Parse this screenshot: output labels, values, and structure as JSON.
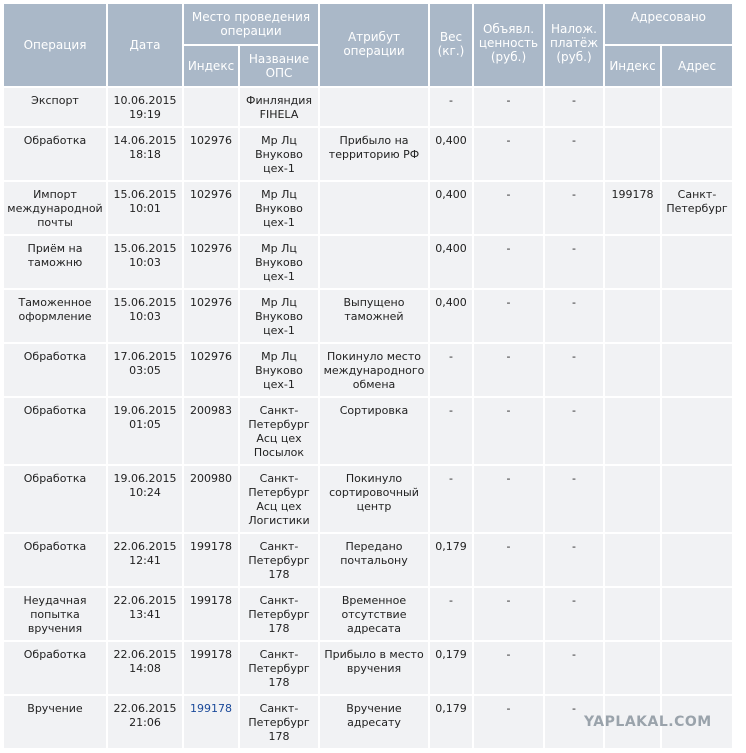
{
  "header": {
    "operation": "Операция",
    "date": "Дата",
    "place": "Место проведения операции",
    "place_index": "Индекс",
    "place_name": "Название ОПС",
    "attribute": "Атрибут операции",
    "weight": "Вес (кг.)",
    "declared_value": "Объявл. ценность (руб.)",
    "cod": "Налож. платёж (руб.)",
    "addressee": "Адресовано",
    "addressee_index": "Индекс",
    "addressee_address": "Адрес"
  },
  "table": {
    "rows": [
      {
        "operation": "Экспорт",
        "date": "10.06.2015 19:19",
        "place_name": "Финляндия FIHELA",
        "weight": "-",
        "declared_value": "-",
        "cod": "-"
      },
      {
        "operation": "Обработка",
        "date": "14.06.2015 18:18",
        "place_index": "102976",
        "place_name": "Мр Лц Внуково цех-1",
        "attribute": "Прибыло на территорию РФ",
        "weight": "0,400",
        "declared_value": "-",
        "cod": "-"
      },
      {
        "operation": "Импорт международной почты",
        "date": "15.06.2015 10:01",
        "place_index": "102976",
        "place_name": "Мр Лц Внуково цех-1",
        "weight": "0,400",
        "declared_value": "-",
        "cod": "-",
        "addressee_index": "199178",
        "addressee_address": "Санкт-Петербург"
      },
      {
        "operation": "Приём на таможню",
        "date": "15.06.2015 10:03",
        "place_index": "102976",
        "place_name": "Мр Лц Внуково цех-1",
        "weight": "0,400",
        "declared_value": "-",
        "cod": "-"
      },
      {
        "operation": "Таможенное оформление",
        "date": "15.06.2015 10:03",
        "place_index": "102976",
        "place_name": "Мр Лц Внуково цех-1",
        "attribute": "Выпущено таможней",
        "weight": "0,400",
        "declared_value": "-",
        "cod": "-"
      },
      {
        "operation": "Обработка",
        "date": "17.06.2015 03:05",
        "place_index": "102976",
        "place_name": "Мр Лц Внуково цех-1",
        "attribute": "Покинуло место международного обмена",
        "weight": "-",
        "declared_value": "-",
        "cod": "-"
      },
      {
        "operation": "Обработка",
        "date": "19.06.2015 01:05",
        "place_index": "200983",
        "place_name": "Санкт-Петербург Асц цех Посылок",
        "attribute": "Сортировка",
        "weight": "-",
        "declared_value": "-",
        "cod": "-"
      },
      {
        "operation": "Обработка",
        "date": "19.06.2015 10:24",
        "place_index": "200980",
        "place_name": "Санкт-Петербург Асц цех Логистики",
        "attribute": "Покинуло сортировочный центр",
        "weight": "-",
        "declared_value": "-",
        "cod": "-"
      },
      {
        "operation": "Обработка",
        "date": "22.06.2015 12:41",
        "place_index": "199178",
        "place_name": "Санкт-Петербург 178",
        "attribute": "Передано почтальону",
        "weight": "0,179",
        "declared_value": "-",
        "cod": "-"
      },
      {
        "operation": "Неудачная попытка вручения",
        "date": "22.06.2015 13:41",
        "place_index": "199178",
        "place_name": "Санкт-Петербург 178",
        "attribute": "Временное отсутствие адресата",
        "weight": "-",
        "declared_value": "-",
        "cod": "-"
      },
      {
        "operation": "Обработка",
        "date": "22.06.2015 14:08",
        "place_index": "199178",
        "place_name": "Санкт-Петербург 178",
        "attribute": "Прибыло в место вручения",
        "weight": "0,179",
        "declared_value": "-",
        "cod": "-"
      },
      {
        "operation": "Вручение",
        "date": "22.06.2015 21:06",
        "place_index": "199178",
        "place_name": "Санкт-Петербург 178",
        "attribute": "Вручение адресату",
        "weight": "0,179",
        "declared_value": "-",
        "cod": "-"
      }
    ]
  },
  "watermark": "YAPLAKAL.COM"
}
